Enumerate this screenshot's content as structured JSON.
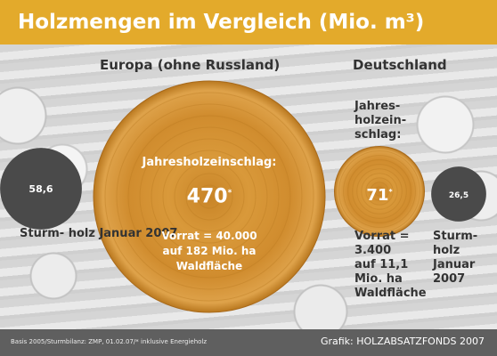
{
  "title": "Holzmengen im Vergleich (Mio. m³)",
  "headings": {
    "europe": "Europa (ohne Russland)",
    "germany": "Deutschland"
  },
  "chart_data": {
    "type": "bubble",
    "title": "Holzmengen im Vergleich (Mio. m³)",
    "unit": "Mio. m³",
    "groups": [
      {
        "name": "Europa (ohne Russland)",
        "storm": {
          "value": 58.6,
          "label": "58,6",
          "caption": "Sturm-\nholz\nJanuar\n2007"
        },
        "harvest": {
          "value": 470,
          "label": "470",
          "marker": "*",
          "caption": "Jahresholzeinschlag:",
          "note": "Vorrat = 40.000\nauf 182 Mio. ha\nWaldfläche"
        }
      },
      {
        "name": "Deutschland",
        "harvest": {
          "value": 71,
          "label": "71",
          "marker": "*",
          "caption": "Jahres-\nholzein-\nschlag:",
          "note": "Vorrat =\n3.400\nauf 11,1\nMio. ha\nWaldfläche"
        },
        "storm": {
          "value": 26.5,
          "label": "26,5",
          "caption": "Sturm-\nholz\nJanuar\n2007"
        }
      }
    ],
    "colors": {
      "harvest": "#d2902f",
      "storm": "#4a4a4a",
      "accent": "#e3aa2b"
    }
  },
  "footer": {
    "note": "Basis 2005/Sturmbilanz: ZMP, 01.02.07/* inklusive Energieholz",
    "credit": "Grafik: HOLZABSATZFONDS 2007"
  }
}
